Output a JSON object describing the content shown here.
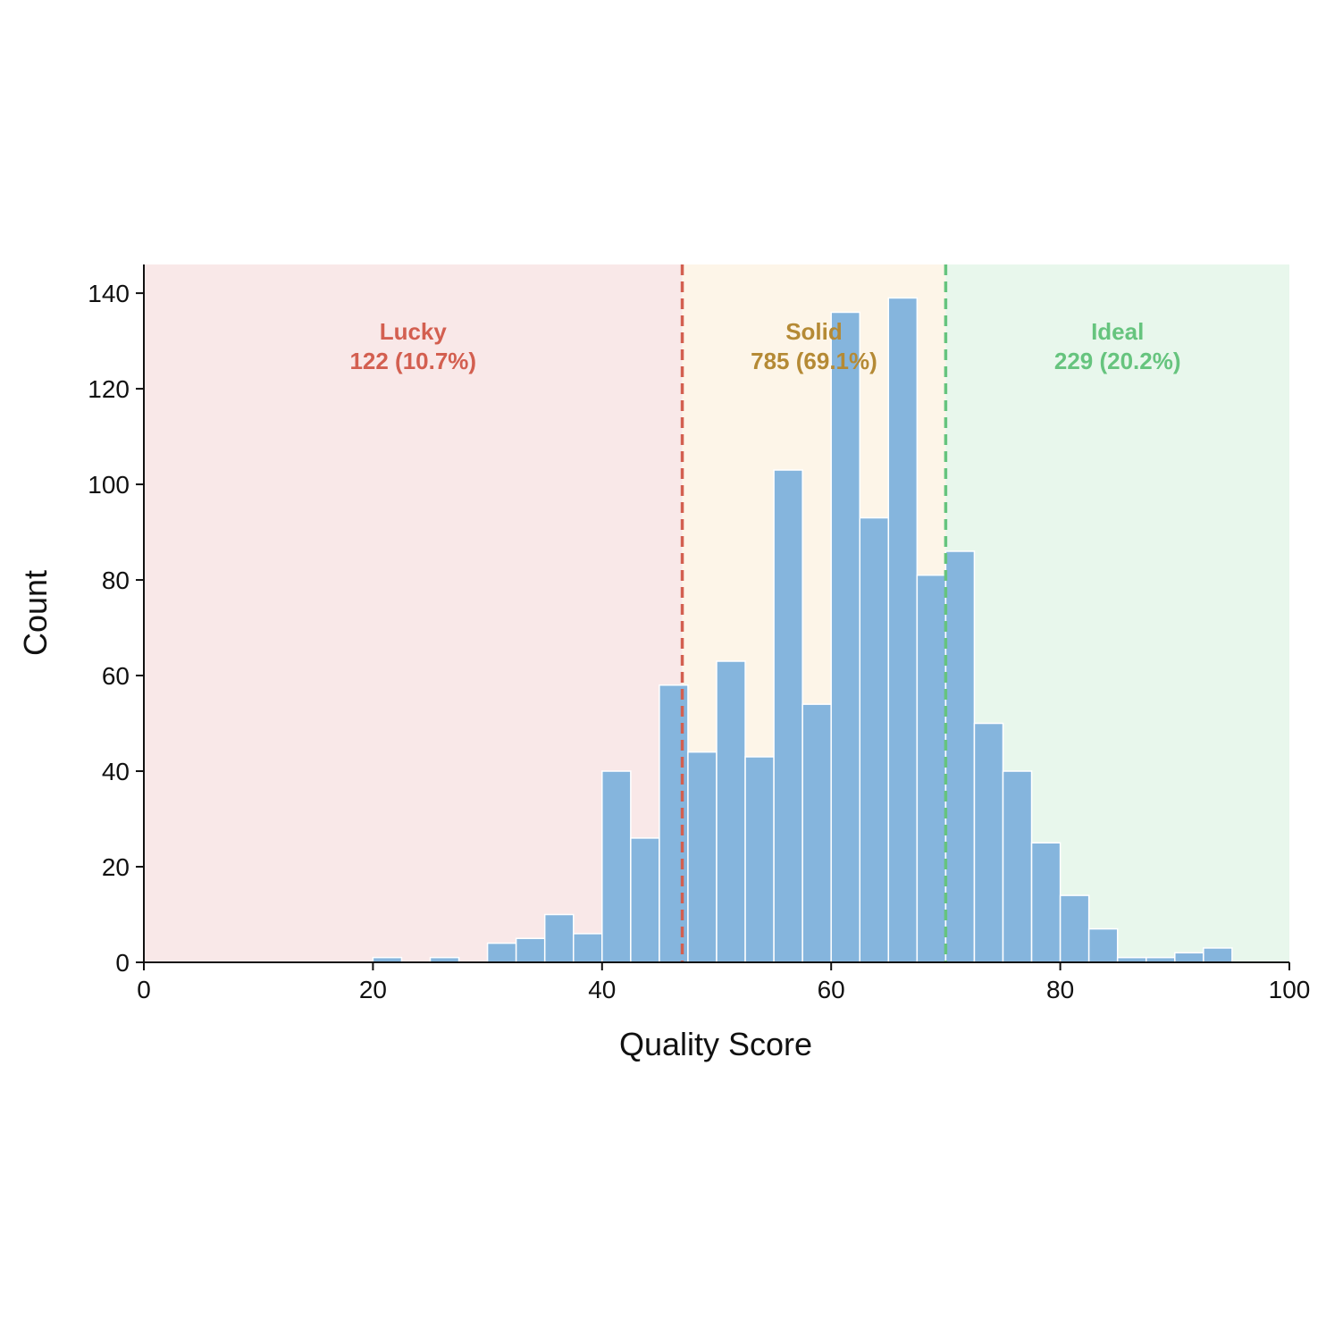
{
  "chart_data": {
    "type": "bar",
    "xlabel": "Quality Score",
    "ylabel": "Count",
    "xlim": [
      0,
      100
    ],
    "ylim": [
      0,
      146
    ],
    "x_ticks": [
      0,
      20,
      40,
      60,
      80,
      100
    ],
    "y_ticks": [
      0,
      20,
      40,
      60,
      80,
      100,
      120,
      140
    ],
    "bin_width": 2.5,
    "bin_starts": [
      0,
      2.5,
      5,
      7.5,
      10,
      12.5,
      15,
      17.5,
      20,
      22.5,
      25,
      27.5,
      30,
      32.5,
      35,
      37.5,
      40,
      42.5,
      45,
      47.5,
      50,
      52.5,
      55,
      57.5,
      60,
      62.5,
      65,
      67.5,
      70,
      72.5,
      75,
      77.5,
      80,
      82.5,
      85,
      87.5,
      90,
      92.5,
      95,
      97.5
    ],
    "counts": [
      0,
      0,
      0,
      0,
      0,
      0,
      0,
      0,
      1,
      0,
      1,
      0,
      4,
      5,
      10,
      6,
      40,
      26,
      58,
      44,
      63,
      43,
      103,
      54,
      136,
      93,
      139,
      81,
      86,
      50,
      40,
      25,
      14,
      7,
      1,
      1,
      2,
      3,
      0,
      0
    ],
    "bar_color": "#85b5dd",
    "grid": false,
    "thresholds": [
      {
        "x": 47,
        "color": "#d35f50"
      },
      {
        "x": 70,
        "color": "#66c47e"
      }
    ],
    "regions": [
      {
        "name": "Lucky",
        "stat": "122 (10.7%)",
        "x_start": 0,
        "x_end": 47,
        "fill": "#f9e8e8",
        "text_color": "#d35f50"
      },
      {
        "name": "Solid",
        "stat": "785 (69.1%)",
        "x_start": 47,
        "x_end": 70,
        "fill": "#fdf5e8",
        "text_color": "#b58a35"
      },
      {
        "name": "Ideal",
        "stat": "229 (20.2%)",
        "x_start": 70,
        "x_end": 100,
        "fill": "#e8f7ec",
        "text_color": "#66c47e"
      }
    ]
  }
}
